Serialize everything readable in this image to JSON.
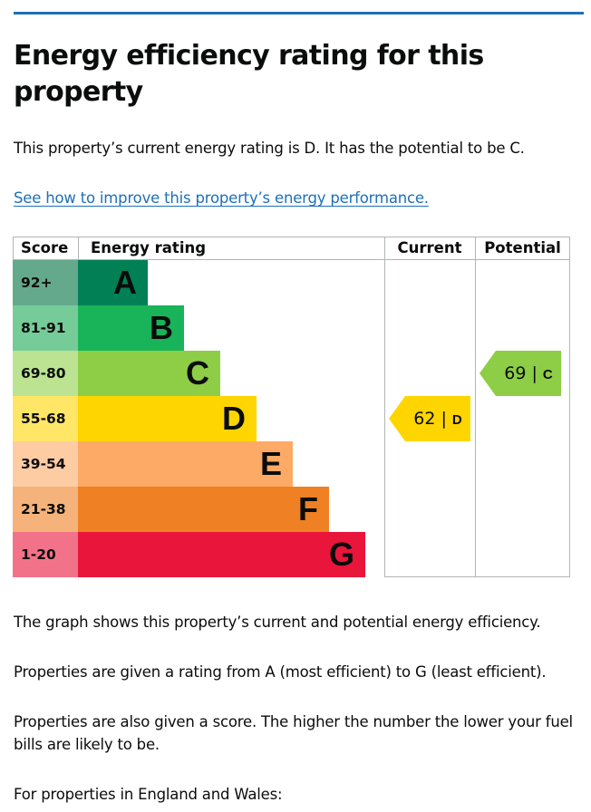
{
  "heading": "Energy efficiency rating for this property",
  "intro": "This property’s current energy rating is D. It has the potential to be C.",
  "improve_link": "See how to improve this property’s energy performance.",
  "chart_data": {
    "type": "table",
    "columns": [
      "Score",
      "Energy rating",
      "Current",
      "Potential"
    ],
    "bands": [
      {
        "score": "92+",
        "letter": "A",
        "color": "#008054",
        "score_color": "#64a98b"
      },
      {
        "score": "81-91",
        "letter": "B",
        "color": "#19b459",
        "score_color": "#75cc99"
      },
      {
        "score": "69-80",
        "letter": "C",
        "color": "#8dce46",
        "score_color": "#bbe391"
      },
      {
        "score": "55-68",
        "letter": "D",
        "color": "#ffd500",
        "score_color": "#ffe666"
      },
      {
        "score": "39-54",
        "letter": "E",
        "color": "#fcaa65",
        "score_color": "#fdcca3"
      },
      {
        "score": "21-38",
        "letter": "F",
        "color": "#ef8023",
        "score_color": "#f5b37b"
      },
      {
        "score": "1-20",
        "letter": "G",
        "color": "#e9153b",
        "score_color": "#f27389"
      }
    ],
    "current": {
      "score": 62,
      "letter": "D",
      "color": "#ffd500"
    },
    "potential": {
      "score": 69,
      "letter": "C",
      "color": "#8dce46"
    }
  },
  "paragraphs": [
    "The graph shows this property’s current and potential energy efficiency.",
    "Properties are given a rating from A (most efficient) to G (least efficient).",
    "Properties are also given a score. The higher the number the lower your fuel bills are likely to be.",
    "For properties in England and Wales:"
  ]
}
